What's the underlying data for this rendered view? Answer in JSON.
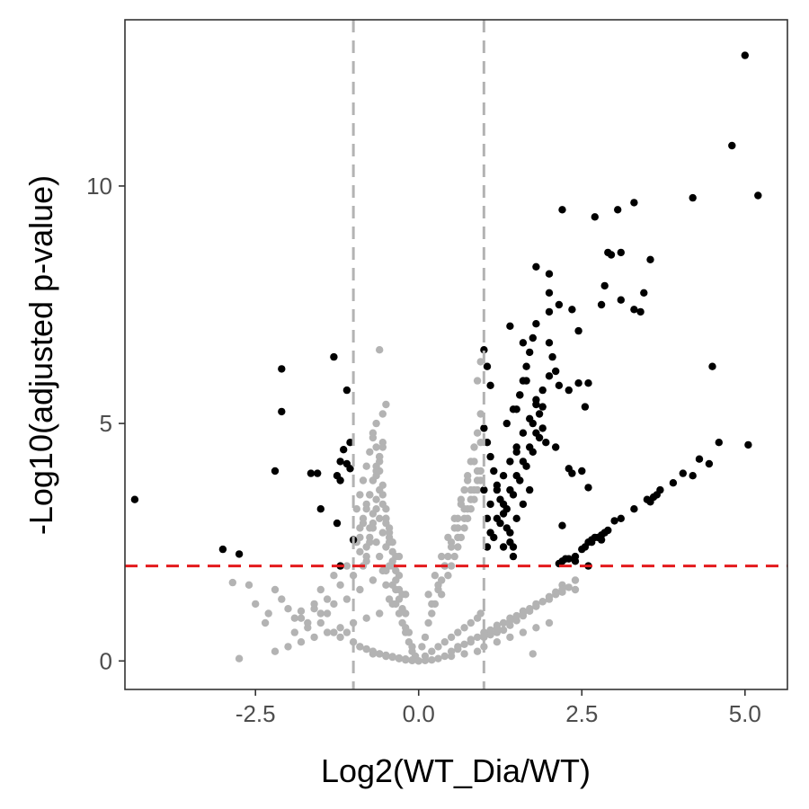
{
  "chart_data": {
    "type": "scatter",
    "title": "",
    "xlabel": "Log2(WT_Dia/WT)",
    "ylabel": "-Log10(adjusted p-value)",
    "xlim": [
      -4.5,
      5.65
    ],
    "ylim": [
      -0.6,
      13.5
    ],
    "x_ticks": [
      -2.5,
      0,
      2.5,
      5
    ],
    "x_tick_labels": [
      "-2.5",
      "0.0",
      "2.5",
      "5.0"
    ],
    "y_ticks": [
      0,
      5,
      10
    ],
    "y_tick_labels": [
      "0",
      "5",
      "10"
    ],
    "grid": false,
    "thresholds": {
      "fold_change_lines": [
        -1,
        1
      ],
      "pvalue_line": 2,
      "fold_change_line_color": "#b3b3b3",
      "pvalue_line_color": "#e31a1c"
    },
    "colors": {
      "significant": "#000000",
      "not_significant": "#b3b3b3"
    },
    "series": [
      {
        "significant": false,
        "x": [
          -2.75,
          -2.85,
          -2.6,
          -2.5,
          -2.35,
          -2.3,
          -2.2,
          -2.1,
          -2.0,
          -1.9,
          -1.8,
          -1.7,
          -1.6,
          -1.5,
          -1.4,
          -1.3,
          -1.2,
          -1.1,
          -1.0,
          -0.9,
          -0.8,
          -0.7,
          -0.6,
          -0.5,
          -0.4,
          -0.3,
          -0.2,
          -0.1,
          -2.2,
          -2.0,
          -1.8,
          -1.6,
          -1.4,
          -1.2,
          -1.0,
          -0.8,
          -0.6,
          -0.4,
          -0.2,
          -1.9,
          -1.7,
          -1.5,
          -1.3,
          -1.1,
          -0.9,
          -0.7,
          -0.5,
          -0.3,
          -1.8,
          -1.6,
          -1.4,
          -1.2,
          -1.0,
          -0.8,
          -1.5,
          -1.3,
          -1.1,
          -0.9,
          -0.95,
          -0.9,
          -0.85,
          -0.8,
          -0.75,
          -0.7,
          -0.65,
          -0.6,
          -0.55,
          -0.5,
          -0.45,
          -0.4,
          -0.35,
          -0.3,
          -0.25,
          -0.2,
          -0.15,
          -0.1,
          -0.05,
          -0.95,
          -0.9,
          -0.85,
          -0.8,
          -0.75,
          -0.7,
          -0.65,
          -0.6,
          -0.55,
          -0.5,
          -0.45,
          -0.4,
          -0.35,
          -0.3,
          -0.25,
          -0.2,
          -0.15,
          -0.1,
          -0.9,
          -0.85,
          -0.8,
          -0.75,
          -0.7,
          -0.65,
          -0.6,
          -0.55,
          -0.5,
          -0.45,
          -0.4,
          -0.35,
          -0.3,
          -0.25,
          -0.2,
          -0.85,
          -0.8,
          -0.75,
          -0.7,
          -0.65,
          -0.6,
          -0.55,
          -0.5,
          -0.45,
          -0.4,
          -0.35,
          -0.3,
          -0.8,
          -0.75,
          -0.7,
          -0.65,
          -0.6,
          -0.55,
          -0.5,
          -0.45,
          -0.4,
          -0.35,
          -0.75,
          -0.7,
          -0.65,
          -0.6,
          -0.55,
          -0.5,
          -0.45,
          -0.7,
          -0.65,
          -0.6,
          -0.55,
          -0.5,
          -0.65,
          -0.6,
          -0.55,
          -0.9,
          -0.8,
          -0.7,
          -0.6,
          -0.5,
          -0.4,
          -0.3,
          -0.2,
          -0.1,
          0.0,
          0.05,
          0.1,
          0.15,
          0.2,
          0.25,
          0.3,
          0.35,
          0.4,
          0.45,
          0.5,
          0.55,
          0.6,
          0.65,
          0.7,
          0.75,
          0.8,
          0.85,
          0.9,
          0.95,
          0.1,
          0.2,
          0.3,
          0.4,
          0.5,
          0.6,
          0.7,
          0.8,
          0.9,
          0.95,
          0.15,
          0.25,
          0.35,
          0.45,
          0.55,
          0.65,
          0.75,
          0.85,
          0.95,
          0.2,
          0.3,
          0.4,
          0.5,
          0.6,
          0.7,
          0.8,
          0.9,
          0.35,
          0.45,
          0.55,
          0.65,
          0.75,
          0.85,
          0.95,
          0.5,
          0.6,
          0.7,
          0.8,
          0.9,
          0.6,
          0.7,
          0.8,
          0.9,
          0.75,
          0.85,
          0.95,
          0.95,
          0.9,
          1.0,
          1.1,
          1.2,
          1.3,
          1.4,
          1.5,
          1.6,
          1.7,
          1.8,
          1.9,
          2.0,
          2.1,
          2.2,
          1.0,
          1.2,
          1.4,
          1.6,
          1.8,
          2.0,
          0.6,
          0.8,
          1.0,
          1.2,
          1.4,
          1.6,
          1.8,
          2.0,
          2.2,
          2.4,
          0.5,
          0.7,
          0.9,
          1.1,
          1.3,
          1.5,
          1.7,
          1.9,
          2.1,
          2.3,
          0.4,
          0.6,
          0.8,
          1.0,
          1.2,
          1.4,
          1.6,
          1.8,
          2.0,
          2.2,
          1.75,
          2.4,
          0.3,
          0.5,
          0.7,
          0.9,
          -0.3,
          -0.5,
          -0.7,
          -0.2,
          0.2,
          0.1,
          -0.1,
          0.0
        ],
        "y": [
          0.05,
          1.65,
          1.6,
          1.2,
          0.8,
          1.0,
          1.5,
          1.3,
          1.1,
          0.9,
          1.05,
          0.7,
          1.2,
          0.8,
          1.0,
          0.6,
          0.5,
          0.6,
          0.4,
          0.3,
          0.25,
          0.2,
          0.15,
          0.1,
          0.08,
          0.05,
          0.03,
          0.01,
          0.2,
          0.3,
          0.4,
          0.5,
          0.6,
          0.7,
          0.8,
          0.9,
          1.0,
          1.2,
          1.4,
          0.6,
          0.8,
          1.0,
          1.2,
          1.3,
          1.5,
          1.7,
          1.9,
          2.2,
          0.9,
          1.1,
          1.3,
          1.6,
          1.8,
          2.1,
          1.5,
          1.8,
          2.0,
          2.3,
          2.5,
          2.8,
          3.0,
          3.3,
          3.5,
          3.8,
          4.0,
          4.2,
          4.5,
          3.0,
          2.5,
          2.0,
          1.5,
          1.0,
          0.8,
          0.6,
          0.4,
          0.2,
          0.1,
          3.2,
          3.5,
          3.8,
          4.1,
          4.4,
          4.7,
          5.0,
          4.0,
          3.5,
          3.0,
          2.8,
          2.5,
          2.2,
          1.8,
          1.4,
          1.0,
          0.6,
          0.3,
          2.6,
          2.9,
          3.2,
          3.5,
          3.8,
          4.1,
          4.3,
          3.7,
          3.2,
          2.7,
          2.3,
          1.9,
          1.5,
          1.1,
          0.7,
          2.0,
          2.4,
          2.8,
          3.1,
          3.4,
          3.6,
          3.3,
          2.9,
          2.6,
          2.1,
          1.7,
          1.3,
          2.2,
          2.5,
          2.9,
          3.2,
          3.0,
          2.7,
          2.4,
          2.0,
          1.6,
          1.2,
          2.6,
          2.8,
          2.5,
          2.2,
          1.9,
          1.6,
          1.3,
          4.8,
          4.5,
          4.3,
          4.6,
          5.4,
          3.9,
          6.55,
          5.2,
          0.3,
          0.25,
          0.2,
          0.15,
          0.12,
          0.09,
          0.06,
          0.04,
          0.02,
          0.0,
          0.3,
          0.5,
          0.8,
          1.0,
          1.2,
          1.5,
          1.7,
          2.0,
          2.2,
          2.5,
          2.8,
          3.0,
          3.3,
          3.6,
          3.9,
          4.2,
          4.5,
          4.8,
          5.2,
          0.1,
          0.2,
          0.3,
          0.4,
          0.5,
          0.6,
          0.7,
          0.8,
          0.9,
          1.0,
          1.4,
          1.8,
          2.2,
          2.6,
          3.0,
          3.4,
          3.8,
          4.2,
          4.6,
          1.2,
          1.6,
          2.0,
          2.4,
          2.8,
          3.2,
          3.6,
          4.0,
          1.4,
          1.8,
          2.2,
          2.6,
          3.0,
          3.4,
          3.8,
          2.0,
          2.4,
          2.8,
          3.2,
          3.6,
          2.6,
          3.0,
          3.4,
          3.8,
          3.2,
          3.6,
          4.0,
          6.3,
          5.9,
          0.5,
          0.55,
          0.6,
          0.65,
          0.75,
          0.85,
          0.95,
          1.05,
          1.15,
          1.25,
          1.35,
          1.45,
          1.6,
          0.3,
          0.4,
          0.5,
          0.6,
          0.7,
          0.8,
          0.3,
          0.45,
          0.6,
          0.75,
          0.9,
          1.05,
          1.2,
          1.35,
          1.5,
          1.7,
          0.2,
          0.35,
          0.5,
          0.65,
          0.8,
          0.95,
          1.1,
          1.25,
          1.4,
          1.55,
          0.1,
          0.25,
          0.4,
          0.55,
          0.7,
          0.85,
          1.0,
          1.15,
          1.3,
          1.45,
          0.15,
          1.5,
          0.05,
          0.1,
          0.15,
          0.2,
          0.05,
          0.1,
          0.15,
          0.02,
          0.02,
          0.01,
          0.01,
          0.0
        ]
      },
      {
        "significant": true,
        "x": [
          -4.35,
          -3.0,
          -2.75,
          -2.2,
          -2.1,
          -2.1,
          -1.65,
          -1.55,
          -1.5,
          -1.3,
          -1.25,
          -1.2,
          -1.15,
          -1.1,
          -1.05,
          -1.25,
          -1.1,
          -1.2,
          -1.05,
          -1.0,
          -1.2,
          1.0,
          1.05,
          1.1,
          1.0,
          1.05,
          1.1,
          1.15,
          1.2,
          1.25,
          1.3,
          1.35,
          1.4,
          1.45,
          1.5,
          1.55,
          1.6,
          1.65,
          1.7,
          1.75,
          1.8,
          1.85,
          1.9,
          1.95,
          2.0,
          2.05,
          2.1,
          2.15,
          1.1,
          1.2,
          1.3,
          1.4,
          1.5,
          1.6,
          1.7,
          1.8,
          1.9,
          2.0,
          1.15,
          1.25,
          1.35,
          1.45,
          1.55,
          1.65,
          1.75,
          1.85,
          1.2,
          1.3,
          1.4,
          1.5,
          1.6,
          1.7,
          1.8,
          1.3,
          1.4,
          1.5,
          1.6,
          1.7,
          1.35,
          1.45,
          1.55,
          1.65,
          1.0,
          1.05,
          1.1,
          1.05,
          1.4,
          1.6,
          1.8,
          2.0,
          2.2,
          2.35,
          2.45,
          2.55,
          2.1,
          2.3,
          2.5,
          1.8,
          2.0,
          2.15,
          2.3,
          2.45,
          2.6,
          2.7,
          2.8,
          2.9,
          3.05,
          3.1,
          3.3,
          3.45,
          3.55,
          3.4,
          2.85,
          2.95,
          3.1,
          3.3,
          2.65,
          2.8,
          2.15,
          2.2,
          2.25,
          2.3,
          2.4,
          2.5,
          2.55,
          2.6,
          2.65,
          2.7,
          2.75,
          2.8,
          2.85,
          2.9,
          3.0,
          3.1,
          3.3,
          3.5,
          3.55,
          3.6,
          3.65,
          3.7,
          3.9,
          4.05,
          4.2,
          4.3,
          4.45,
          4.6,
          4.5,
          4.2,
          4.8,
          5.0,
          5.2,
          5.05,
          2.6,
          2.35,
          2.0,
          1.9,
          1.75,
          1.5,
          2.4,
          2.6,
          2.2,
          1.45
        ],
        "y": [
          3.4,
          2.35,
          2.25,
          4.0,
          6.15,
          5.25,
          3.95,
          3.95,
          3.2,
          6.4,
          2.9,
          2.0,
          4.45,
          4.15,
          4.05,
          3.9,
          5.7,
          3.8,
          4.6,
          2.55,
          4.2,
          6.55,
          6.2,
          5.8,
          4.9,
          4.6,
          4.3,
          4.0,
          3.7,
          3.4,
          3.1,
          2.8,
          2.5,
          2.2,
          5.3,
          5.6,
          5.9,
          6.2,
          6.5,
          6.8,
          5.5,
          5.2,
          4.9,
          4.6,
          6.7,
          6.4,
          6.1,
          5.8,
          3.3,
          3.6,
          3.9,
          4.2,
          4.5,
          4.8,
          5.1,
          5.4,
          5.7,
          6.0,
          2.6,
          2.9,
          3.2,
          3.5,
          3.8,
          4.1,
          4.4,
          4.7,
          3.0,
          3.3,
          3.6,
          3.9,
          4.2,
          4.5,
          4.8,
          2.4,
          2.7,
          3.0,
          3.3,
          3.6,
          5.0,
          5.3,
          5.6,
          5.9,
          3.6,
          3.0,
          2.7,
          2.4,
          7.05,
          6.7,
          8.3,
          8.15,
          9.5,
          7.4,
          6.95,
          5.35,
          4.5,
          4.05,
          4.0,
          7.1,
          7.75,
          7.5,
          5.7,
          5.85,
          3.65,
          9.35,
          7.5,
          8.6,
          9.5,
          8.6,
          9.65,
          7.75,
          8.45,
          7.35,
          7.9,
          8.55,
          7.6,
          7.4,
          2.5,
          2.55,
          2.05,
          2.1,
          2.15,
          2.15,
          2.2,
          2.35,
          2.4,
          2.5,
          2.55,
          2.6,
          2.6,
          2.65,
          2.7,
          2.75,
          2.95,
          3.0,
          3.2,
          3.4,
          3.35,
          3.45,
          3.5,
          3.6,
          3.75,
          3.95,
          3.9,
          4.25,
          4.15,
          4.6,
          6.2,
          9.75,
          10.85,
          12.75,
          9.8,
          4.55,
          5.85,
          3.95,
          7.35,
          5.35,
          5.0,
          4.4,
          2.1,
          2.0,
          2.85,
          2.4
        ]
      }
    ]
  }
}
